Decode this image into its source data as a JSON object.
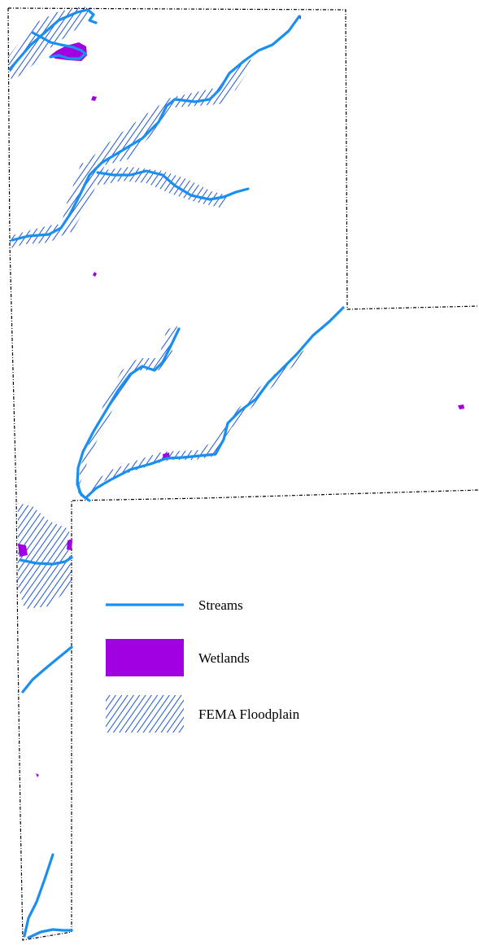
{
  "colors": {
    "stream": "#1a8ff0",
    "wetland": "#a100e0",
    "floodplain": "#1e55d8",
    "boundary": "#000000",
    "background": "#ffffff"
  },
  "legend": {
    "items": [
      {
        "label": "Streams",
        "icon": "stream-line-symbol"
      },
      {
        "label": "Wetlands",
        "icon": "wetland-fill-symbol"
      },
      {
        "label": "FEMA Floodplain",
        "icon": "floodplain-hatch-symbol"
      }
    ]
  }
}
